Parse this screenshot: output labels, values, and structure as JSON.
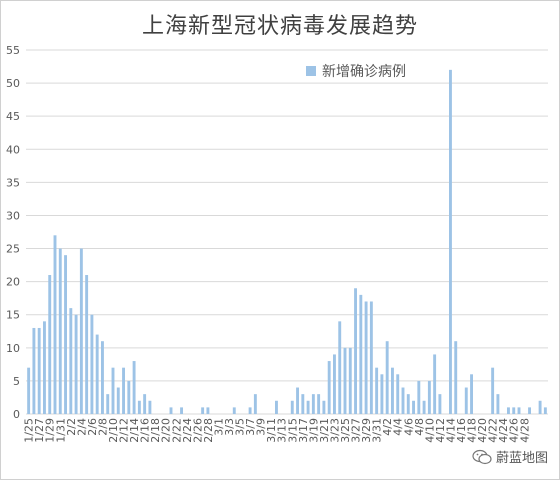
{
  "chart_data": {
    "type": "bar",
    "title": "上海新型冠状病毒发展趋势",
    "legend": {
      "label": "新增确诊病例",
      "placement": "top-right",
      "color": "#9dc3e6"
    },
    "bar_color": "#9dc3e6",
    "ylim": [
      0,
      55
    ],
    "yticks": [
      0,
      5,
      10,
      15,
      20,
      25,
      30,
      35,
      40,
      45,
      50,
      55
    ],
    "grid": true,
    "xtick_labels": [
      "1/25",
      "1/27",
      "1/29",
      "1/31",
      "2/2",
      "2/4",
      "2/6",
      "2/8",
      "2/10",
      "2/12",
      "2/14",
      "2/16",
      "2/18",
      "2/20",
      "2/22",
      "2/24",
      "2/26",
      "2/28",
      "3/1",
      "3/3",
      "3/5",
      "3/7",
      "3/9",
      "3/11",
      "3/13",
      "3/15",
      "3/17",
      "3/19",
      "3/21",
      "3/23",
      "3/25",
      "3/27",
      "3/29",
      "3/31",
      "4/2",
      "4/4",
      "4/6",
      "4/8",
      "4/10",
      "4/12",
      "4/14",
      "4/16",
      "4/18",
      "4/20",
      "4/22",
      "4/24",
      "4/26",
      "4/28"
    ],
    "values": [
      7,
      13,
      13,
      14,
      21,
      27,
      25,
      24,
      16,
      15,
      25,
      21,
      15,
      12,
      11,
      3,
      7,
      4,
      7,
      5,
      8,
      2,
      3,
      2,
      0,
      0,
      0,
      1,
      0,
      1,
      0,
      0,
      0,
      1,
      1,
      0,
      0,
      0,
      0,
      1,
      0,
      0,
      1,
      3,
      0,
      0,
      0,
      2,
      0,
      0,
      2,
      4,
      3,
      2,
      3,
      3,
      2,
      8,
      9,
      14,
      10,
      10,
      19,
      18,
      17,
      17,
      7,
      6,
      11,
      7,
      6,
      4,
      3,
      2,
      5,
      2,
      5,
      9,
      3,
      0,
      52,
      11,
      0,
      4,
      6,
      0,
      0,
      0,
      7,
      3,
      0,
      1,
      1,
      1,
      0,
      1,
      0,
      2,
      1
    ]
  },
  "watermark": {
    "text": "蔚蓝地图",
    "icon": "wechat-icon"
  }
}
